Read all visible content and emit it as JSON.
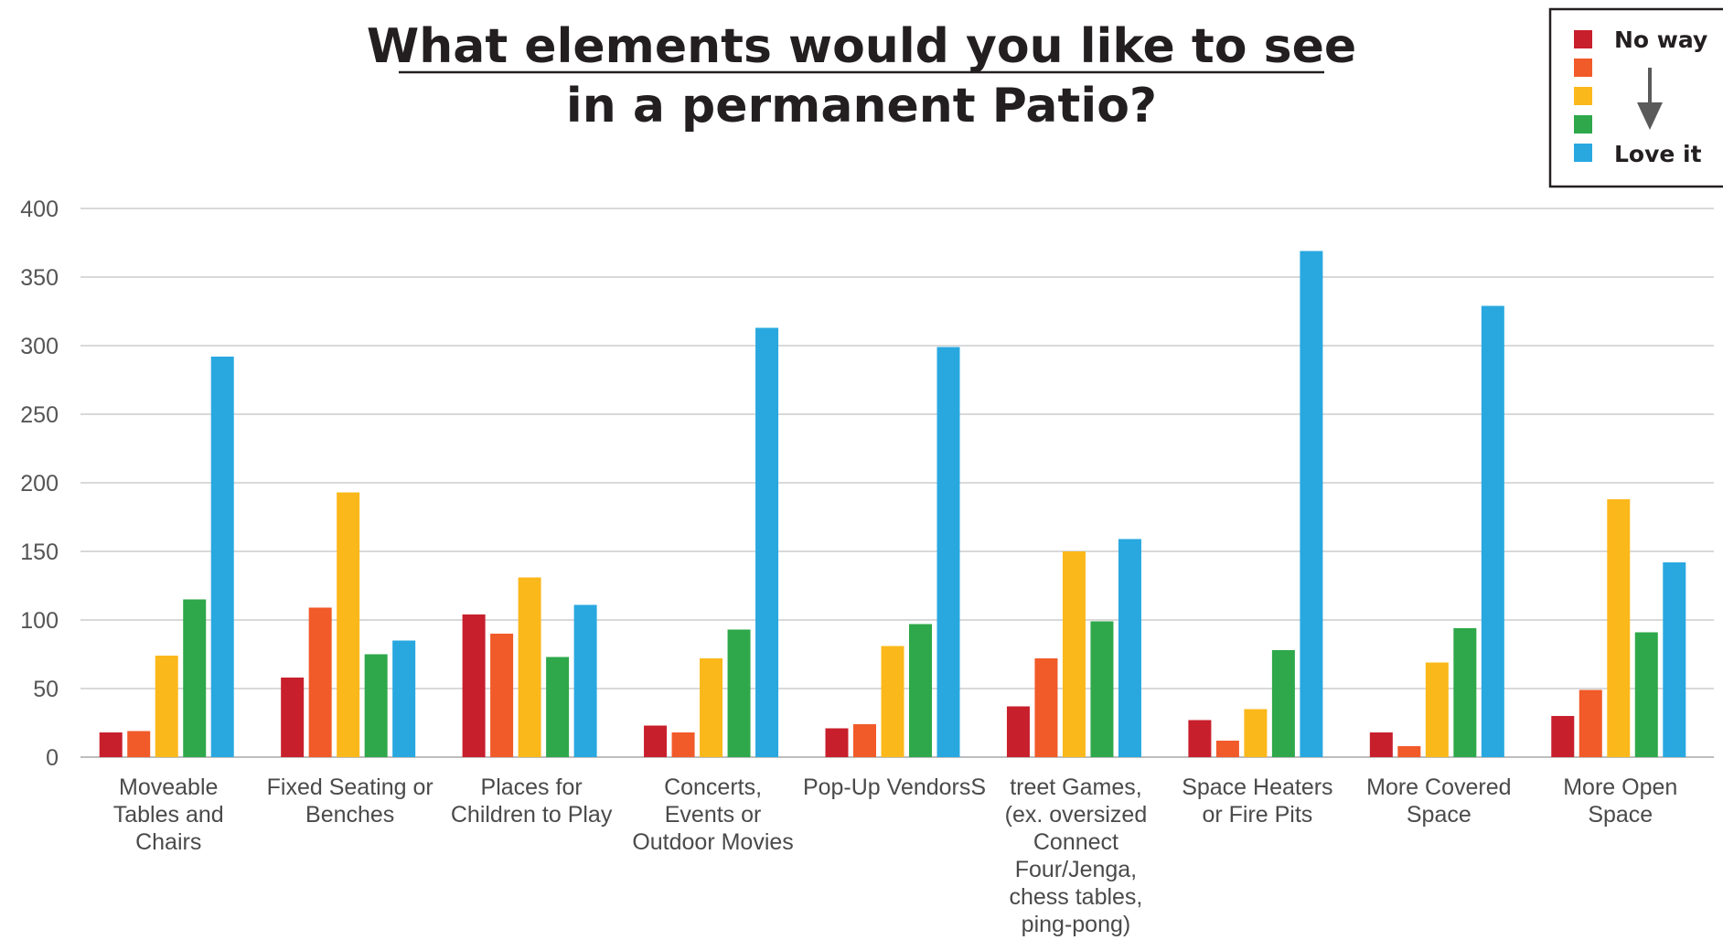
{
  "chart_data": {
    "type": "bar",
    "title": "What elements would you like to see in a permanent Patio?",
    "title_lines": [
      "What elements would you like to see",
      "in a permanent Patio?"
    ],
    "xlabel": "",
    "ylabel": "",
    "ylim": [
      0,
      400
    ],
    "yticks": [
      "0",
      "50",
      "100",
      "150",
      "200",
      "250",
      "300",
      "350",
      "400"
    ],
    "grid": true,
    "legend_position": "top-right",
    "legend": {
      "top_label": "No way",
      "bottom_label": "Love it"
    },
    "categories": [
      [
        "Moveable",
        "Tables and",
        "Chairs"
      ],
      [
        "Fixed Seating or",
        "Benches"
      ],
      [
        "Places for",
        "Children to Play"
      ],
      [
        "Concerts,",
        "Events or",
        "Outdoor Movies"
      ],
      [
        "Pop-Up VendorsS"
      ],
      [
        "treet Games,",
        "(ex. oversized",
        "Connect",
        "Four/Jenga,",
        "chess tables,",
        "ping-pong)"
      ],
      [
        "Space Heaters",
        "or Fire Pits"
      ],
      [
        "More Covered",
        "Space"
      ],
      [
        "More Open",
        "Space"
      ]
    ],
    "colors": [
      "#c81f2c",
      "#f15a29",
      "#fbb81b",
      "#2ea84a",
      "#29a8e0"
    ],
    "series": [
      {
        "values": [
          18,
          58,
          104,
          23,
          21,
          37,
          27,
          18,
          30
        ]
      },
      {
        "values": [
          19,
          109,
          90,
          18,
          24,
          72,
          12,
          8,
          49
        ]
      },
      {
        "values": [
          74,
          193,
          131,
          72,
          81,
          150,
          35,
          69,
          188
        ]
      },
      {
        "values": [
          115,
          75,
          73,
          93,
          97,
          99,
          78,
          94,
          91
        ]
      },
      {
        "values": [
          292,
          85,
          111,
          313,
          299,
          159,
          369,
          329,
          142
        ]
      }
    ]
  }
}
